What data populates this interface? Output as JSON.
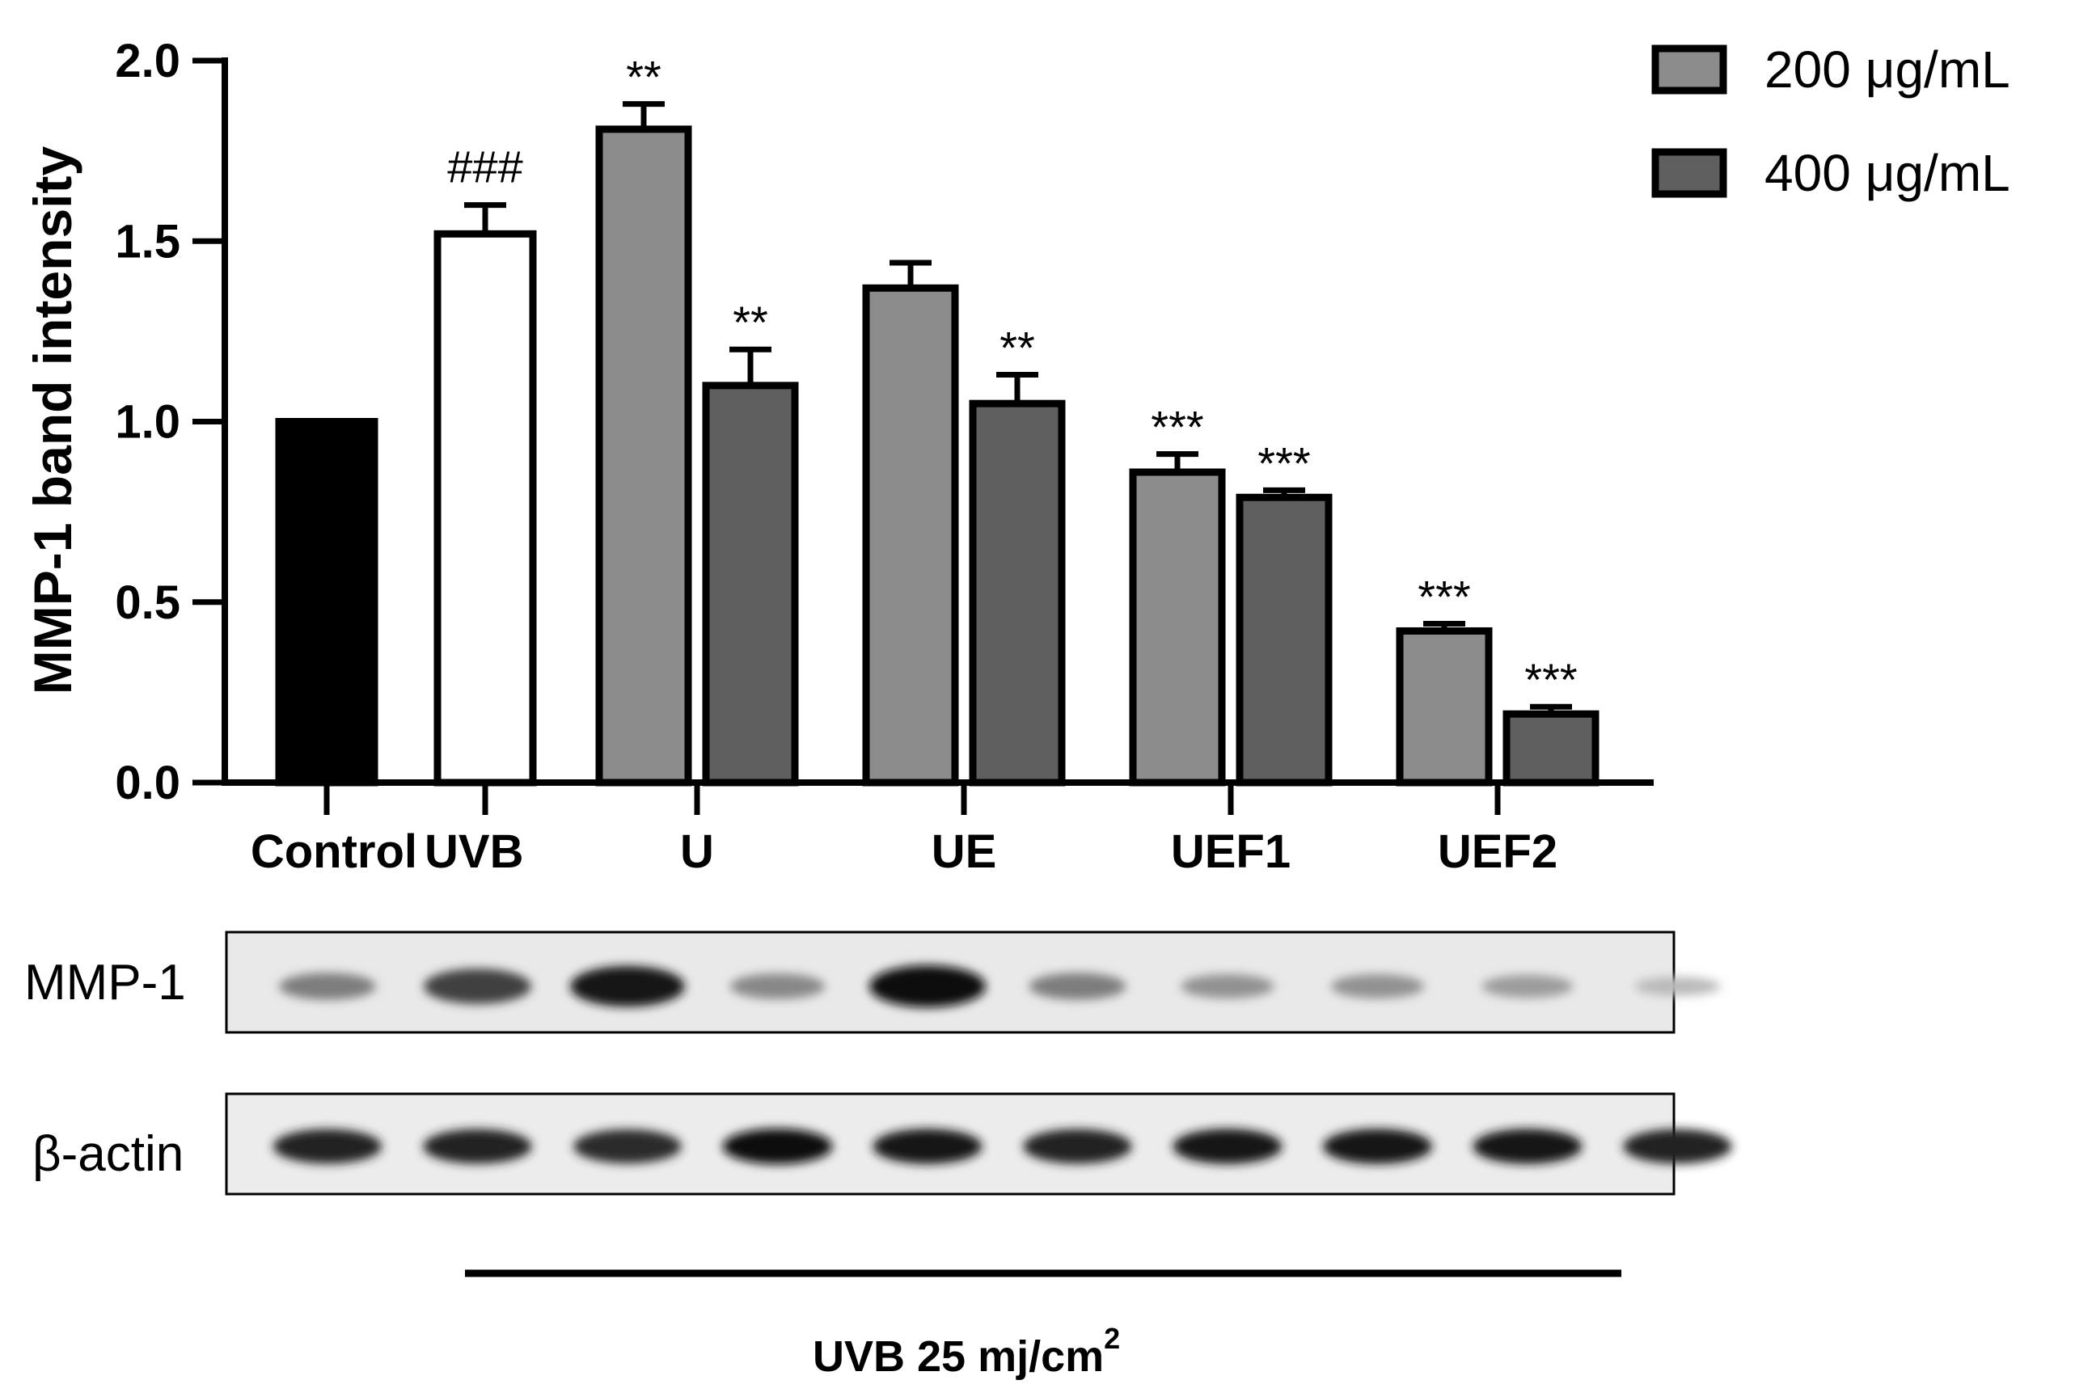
{
  "chart_data": {
    "type": "bar",
    "ylabel": "MMP-1 band intensity",
    "ylim": [
      0,
      2.0
    ],
    "yticks": [
      "0.0",
      "0.5",
      "1.0",
      "1.5",
      "2.0"
    ],
    "grid": false,
    "legend_position": "top-right",
    "groups": [
      "Control",
      "UVB",
      "U",
      "UE",
      "UEF1",
      "UEF2"
    ],
    "legend": [
      {
        "label": "200 μg/mL",
        "color": "#8c8c8c"
      },
      {
        "label": "400 μg/mL",
        "color": "#5f5f5f"
      }
    ],
    "bars": [
      {
        "group": "Control",
        "dose": "",
        "value": 1.0,
        "error": 0,
        "color": "#000000",
        "annotation": ""
      },
      {
        "group": "UVB",
        "dose": "",
        "value": 1.52,
        "error": 0.08,
        "color": "#ffffff",
        "annotation": "###"
      },
      {
        "group": "U",
        "dose": "200 μg/mL",
        "value": 1.81,
        "error": 0.07,
        "color": "#8c8c8c",
        "annotation": "**"
      },
      {
        "group": "U",
        "dose": "400 μg/mL",
        "value": 1.1,
        "error": 0.1,
        "color": "#5f5f5f",
        "annotation": "**"
      },
      {
        "group": "UE",
        "dose": "200 μg/mL",
        "value": 1.37,
        "error": 0.07,
        "color": "#8c8c8c",
        "annotation": ""
      },
      {
        "group": "UE",
        "dose": "400 μg/mL",
        "value": 1.05,
        "error": 0.08,
        "color": "#5f5f5f",
        "annotation": "**"
      },
      {
        "group": "UEF1",
        "dose": "200 μg/mL",
        "value": 0.86,
        "error": 0.05,
        "color": "#8c8c8c",
        "annotation": "***"
      },
      {
        "group": "UEF1",
        "dose": "400 μg/mL",
        "value": 0.79,
        "error": 0.02,
        "color": "#5f5f5f",
        "annotation": "***"
      },
      {
        "group": "UEF2",
        "dose": "200 μg/mL",
        "value": 0.42,
        "error": 0.02,
        "color": "#8c8c8c",
        "annotation": "***"
      },
      {
        "group": "UEF2",
        "dose": "400 μg/mL",
        "value": 0.19,
        "error": 0.02,
        "color": "#5f5f5f",
        "annotation": "***"
      }
    ],
    "blot": {
      "mmp1_label": "MMP-1",
      "actin_label": "β-actin",
      "mmp1_relative_intensity": [
        0.45,
        0.75,
        0.95,
        0.4,
        1.0,
        0.45,
        0.35,
        0.35,
        0.3,
        0.15
      ],
      "actin_relative_intensity": [
        0.9,
        0.9,
        0.85,
        1.0,
        0.95,
        0.9,
        0.95,
        0.95,
        0.95,
        0.9
      ]
    },
    "treatment_label": "UVB 25 mj/cm",
    "treatment_superscript": "2"
  }
}
